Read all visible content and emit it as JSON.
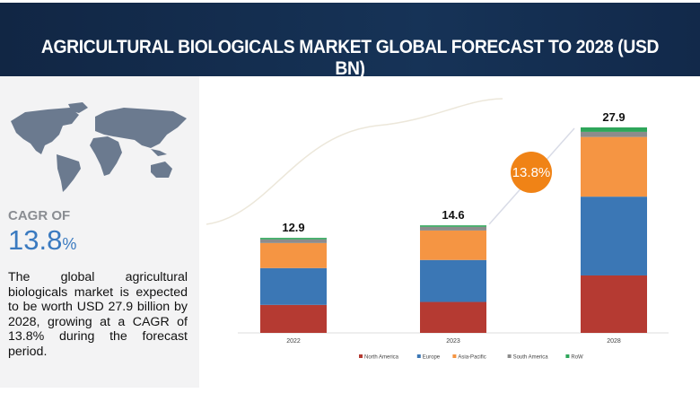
{
  "header": {
    "title": "AGRICULTURAL BIOLOGICALS MARKET GLOBAL FORECAST TO 2028 (USD BN)"
  },
  "summary": {
    "cagr_label": "CAGR OF",
    "cagr_value": "13.8",
    "cagr_unit": "%",
    "description": "The global agricultural biologicals market is expected to be worth USD 27.9 billion by 2028, growing at a CAGR of 13.8% during the forecast period."
  },
  "chart_data": {
    "type": "bar",
    "stacked": true,
    "categories": [
      "2022",
      "2023",
      "2028"
    ],
    "totals": [
      "12.9",
      "14.6",
      "27.9"
    ],
    "series": [
      {
        "name": "North America",
        "color": "#b53a32",
        "values": [
          3.8,
          4.2,
          7.8
        ]
      },
      {
        "name": "Europe",
        "color": "#3b77b5",
        "values": [
          5.0,
          5.7,
          10.7
        ]
      },
      {
        "name": "Asia-Pacific",
        "color": "#f59543",
        "values": [
          3.4,
          4.0,
          8.1
        ]
      },
      {
        "name": "South America",
        "color": "#8c8c8c",
        "values": [
          0.5,
          0.5,
          0.7
        ]
      },
      {
        "name": "RoW",
        "color": "#2ea65a",
        "values": [
          0.2,
          0.2,
          0.6
        ]
      }
    ],
    "cagr_badge": "13.8%",
    "cagr_color": "#f08316",
    "legend_position": "bottom",
    "grid": false
  }
}
